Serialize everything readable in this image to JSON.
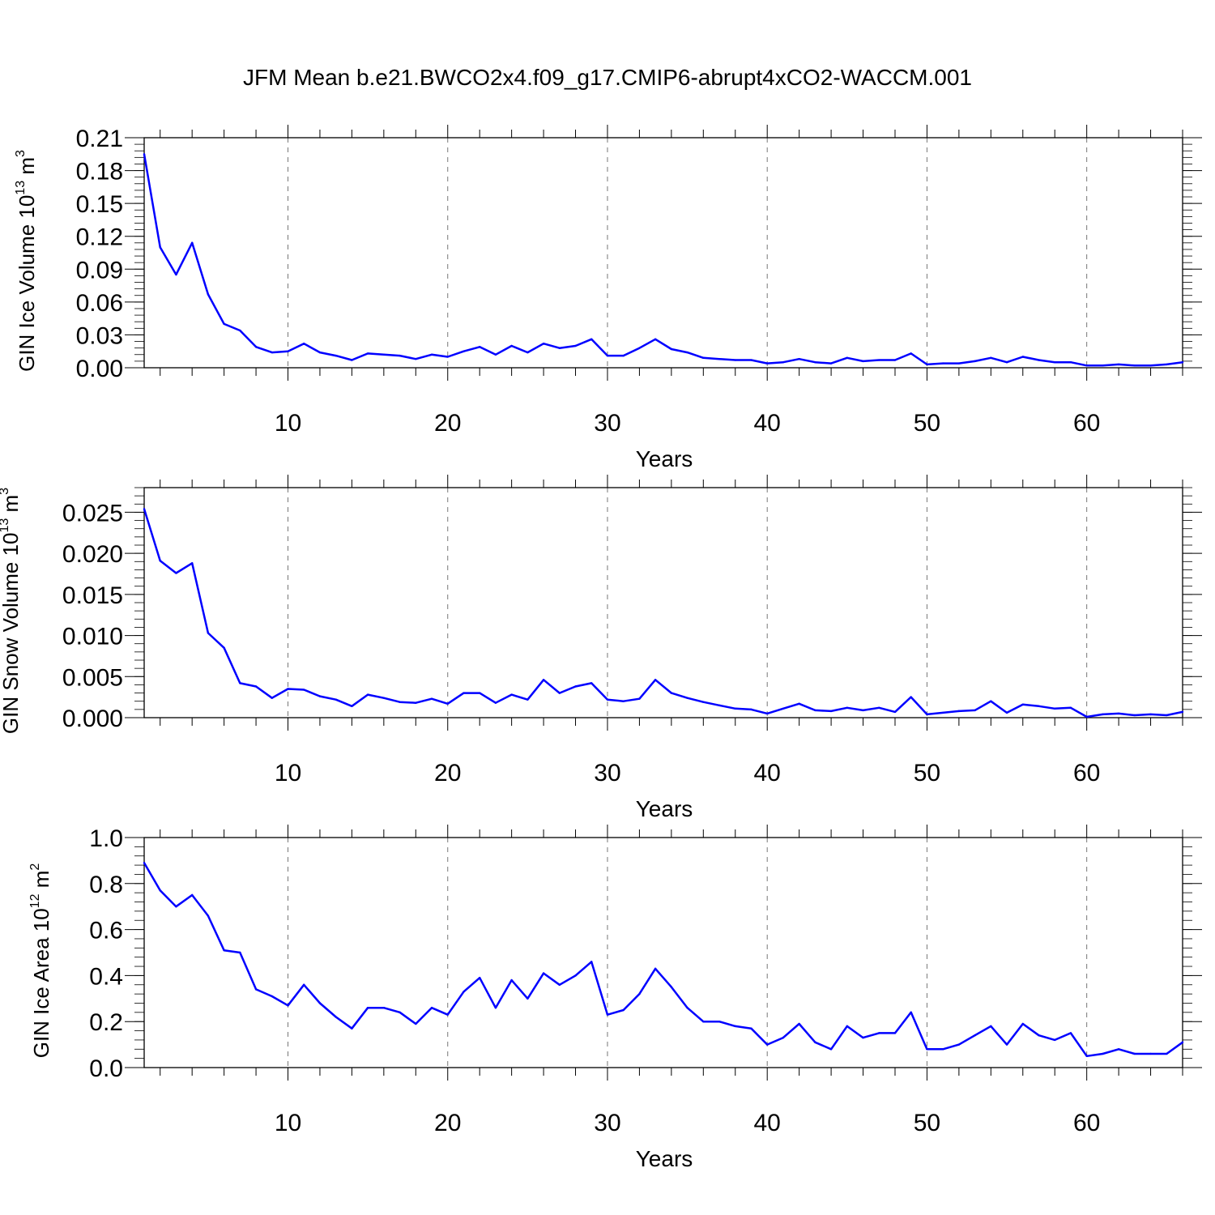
{
  "figure": {
    "title": "JFM Mean b.e21.BWCO2x4.f09_g17.CMIP6-abrupt4xCO2-WACCM.001"
  },
  "colors": {
    "line": "#0000ff",
    "axis": "#000000",
    "grid": "#777777"
  },
  "chart_data": [
    {
      "type": "line",
      "title": "",
      "xlabel": "Years",
      "ylabel_main": "GIN Ice Volume 10",
      "ylabel_sup": "13",
      "ylabel_unit": " m",
      "ylabel_unit_sup": "3",
      "xlim": [
        1,
        66
      ],
      "ylim": [
        0,
        0.21
      ],
      "xticks": [
        10,
        20,
        30,
        40,
        50,
        60
      ],
      "xtick_labels": [
        "10",
        "20",
        "30",
        "40",
        "50",
        "60"
      ],
      "yticks": [
        0,
        0.03,
        0.06,
        0.09,
        0.12,
        0.15,
        0.18,
        0.21
      ],
      "ytick_labels": [
        "0.00",
        "0.03",
        "0.06",
        "0.09",
        "0.12",
        "0.15",
        "0.18",
        "0.21"
      ],
      "grid": "vertical dashed at x ticks",
      "series": [
        {
          "x": [
            1,
            2,
            3,
            4,
            5,
            6,
            7,
            8,
            9,
            10,
            11,
            12,
            13,
            14,
            15,
            16,
            17,
            18,
            19,
            20,
            21,
            22,
            23,
            24,
            25,
            26,
            27,
            28,
            29,
            30,
            31,
            32,
            33,
            34,
            35,
            36,
            37,
            38,
            39,
            40,
            41,
            42,
            43,
            44,
            45,
            46,
            47,
            48,
            49,
            50,
            51,
            52,
            53,
            54,
            55,
            56,
            57,
            58,
            59,
            60,
            61,
            62,
            63,
            64,
            65,
            66
          ],
          "values": [
            0.195,
            0.11,
            0.085,
            0.114,
            0.067,
            0.04,
            0.034,
            0.019,
            0.014,
            0.015,
            0.022,
            0.014,
            0.011,
            0.007,
            0.013,
            0.012,
            0.011,
            0.008,
            0.012,
            0.01,
            0.015,
            0.019,
            0.012,
            0.02,
            0.014,
            0.022,
            0.018,
            0.02,
            0.026,
            0.011,
            0.011,
            0.018,
            0.026,
            0.017,
            0.014,
            0.009,
            0.008,
            0.007,
            0.007,
            0.004,
            0.005,
            0.008,
            0.005,
            0.004,
            0.009,
            0.006,
            0.007,
            0.007,
            0.013,
            0.003,
            0.004,
            0.004,
            0.006,
            0.009,
            0.005,
            0.01,
            0.007,
            0.005,
            0.005,
            0.002,
            0.002,
            0.003,
            0.002,
            0.002,
            0.003,
            0.005
          ]
        }
      ]
    },
    {
      "type": "line",
      "title": "",
      "xlabel": "Years",
      "ylabel_main": "GIN Snow Volume 10",
      "ylabel_sup": "13",
      "ylabel_unit": " m",
      "ylabel_unit_sup": "3",
      "xlim": [
        1,
        66
      ],
      "ylim": [
        0,
        0.028
      ],
      "xticks": [
        10,
        20,
        30,
        40,
        50,
        60
      ],
      "xtick_labels": [
        "10",
        "20",
        "30",
        "40",
        "50",
        "60"
      ],
      "yticks": [
        0,
        0.005,
        0.01,
        0.015,
        0.02,
        0.025
      ],
      "ytick_labels": [
        "0.000",
        "0.005",
        "0.010",
        "0.015",
        "0.020",
        "0.025"
      ],
      "grid": "vertical dashed at x ticks",
      "series": [
        {
          "x": [
            1,
            2,
            3,
            4,
            5,
            6,
            7,
            8,
            9,
            10,
            11,
            12,
            13,
            14,
            15,
            16,
            17,
            18,
            19,
            20,
            21,
            22,
            23,
            24,
            25,
            26,
            27,
            28,
            29,
            30,
            31,
            32,
            33,
            34,
            35,
            36,
            37,
            38,
            39,
            40,
            41,
            42,
            43,
            44,
            45,
            46,
            47,
            48,
            49,
            50,
            51,
            52,
            53,
            54,
            55,
            56,
            57,
            58,
            59,
            60,
            61,
            62,
            63,
            64,
            65,
            66
          ],
          "values": [
            0.0254,
            0.0191,
            0.0176,
            0.0188,
            0.0103,
            0.0085,
            0.0042,
            0.0038,
            0.0024,
            0.0035,
            0.0034,
            0.0026,
            0.0022,
            0.0014,
            0.0028,
            0.0024,
            0.0019,
            0.0018,
            0.0023,
            0.0017,
            0.003,
            0.003,
            0.0018,
            0.0028,
            0.0022,
            0.0046,
            0.003,
            0.0038,
            0.0042,
            0.0022,
            0.002,
            0.0023,
            0.0046,
            0.003,
            0.0024,
            0.0019,
            0.0015,
            0.0011,
            0.001,
            0.0005,
            0.0011,
            0.0017,
            0.0009,
            0.0008,
            0.0012,
            0.0009,
            0.0012,
            0.0007,
            0.0025,
            0.0004,
            0.0006,
            0.0008,
            0.0009,
            0.002,
            0.0006,
            0.0016,
            0.0014,
            0.0011,
            0.0012,
            0.0001,
            0.0004,
            0.0005,
            0.0003,
            0.0004,
            0.0003,
            0.0007
          ]
        }
      ]
    },
    {
      "type": "line",
      "title": "",
      "xlabel": "Years",
      "ylabel_main": "GIN Ice Area 10",
      "ylabel_sup": "12",
      "ylabel_unit": " m",
      "ylabel_unit_sup": "2",
      "xlim": [
        1,
        66
      ],
      "ylim": [
        0,
        1.0
      ],
      "xticks": [
        10,
        20,
        30,
        40,
        50,
        60
      ],
      "xtick_labels": [
        "10",
        "20",
        "30",
        "40",
        "50",
        "60"
      ],
      "yticks": [
        0,
        0.2,
        0.4,
        0.6,
        0.8,
        1.0
      ],
      "ytick_labels": [
        "0.0",
        "0.2",
        "0.4",
        "0.6",
        "0.8",
        "1.0"
      ],
      "grid": "vertical dashed at x ticks",
      "series": [
        {
          "x": [
            1,
            2,
            3,
            4,
            5,
            6,
            7,
            8,
            9,
            10,
            11,
            12,
            13,
            14,
            15,
            16,
            17,
            18,
            19,
            20,
            21,
            22,
            23,
            24,
            25,
            26,
            27,
            28,
            29,
            30,
            31,
            32,
            33,
            34,
            35,
            36,
            37,
            38,
            39,
            40,
            41,
            42,
            43,
            44,
            45,
            46,
            47,
            48,
            49,
            50,
            51,
            52,
            53,
            54,
            55,
            56,
            57,
            58,
            59,
            60,
            61,
            62,
            63,
            64,
            65,
            66
          ],
          "values": [
            0.89,
            0.77,
            0.7,
            0.75,
            0.66,
            0.51,
            0.5,
            0.34,
            0.31,
            0.27,
            0.36,
            0.28,
            0.22,
            0.17,
            0.26,
            0.26,
            0.24,
            0.19,
            0.26,
            0.23,
            0.33,
            0.39,
            0.26,
            0.38,
            0.3,
            0.41,
            0.36,
            0.4,
            0.46,
            0.23,
            0.25,
            0.32,
            0.43,
            0.35,
            0.26,
            0.2,
            0.2,
            0.18,
            0.17,
            0.1,
            0.13,
            0.19,
            0.11,
            0.08,
            0.18,
            0.13,
            0.15,
            0.15,
            0.24,
            0.08,
            0.08,
            0.1,
            0.14,
            0.18,
            0.1,
            0.19,
            0.14,
            0.12,
            0.15,
            0.05,
            0.06,
            0.08,
            0.06,
            0.06,
            0.06,
            0.11
          ]
        }
      ]
    }
  ]
}
